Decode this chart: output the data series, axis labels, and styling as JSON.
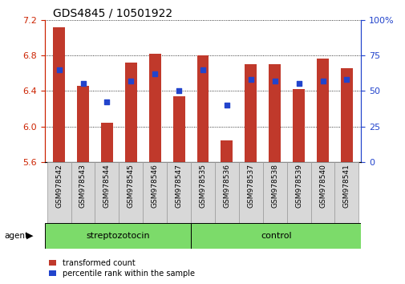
{
  "title": "GDS4845 / 10501922",
  "samples": [
    "GSM978542",
    "GSM978543",
    "GSM978544",
    "GSM978545",
    "GSM978546",
    "GSM978547",
    "GSM978535",
    "GSM978536",
    "GSM978537",
    "GSM978538",
    "GSM978539",
    "GSM978540",
    "GSM978541"
  ],
  "red_values": [
    7.12,
    6.46,
    6.04,
    6.72,
    6.82,
    6.34,
    6.8,
    5.84,
    6.7,
    6.7,
    6.42,
    6.76,
    6.66
  ],
  "blue_pct": [
    65,
    55,
    42,
    57,
    62,
    50,
    65,
    40,
    58,
    57,
    55,
    57,
    58
  ],
  "ylim_left": [
    5.6,
    7.2
  ],
  "ylim_right": [
    0,
    100
  ],
  "yticks_left": [
    5.6,
    6.0,
    6.4,
    6.8,
    7.2
  ],
  "yticks_right": [
    0,
    25,
    50,
    75,
    100
  ],
  "ytick_labels_right": [
    "0",
    "25",
    "50",
    "75",
    "100%"
  ],
  "bar_color": "#C0392B",
  "dot_color": "#2244CC",
  "baseline": 5.6,
  "group1_label": "streptozotocin",
  "group2_label": "control",
  "group1_count": 6,
  "group2_count": 7,
  "agent_label": "agent",
  "legend_red": "transformed count",
  "legend_blue": "percentile rank within the sample",
  "bar_width": 0.5,
  "group_color": "#7CDB6A",
  "title_fontsize": 10,
  "axis_color_left": "#CC2200",
  "axis_color_right": "#2244CC",
  "xtick_bg_color": "#D8D8D8",
  "spine_color": "#888888"
}
